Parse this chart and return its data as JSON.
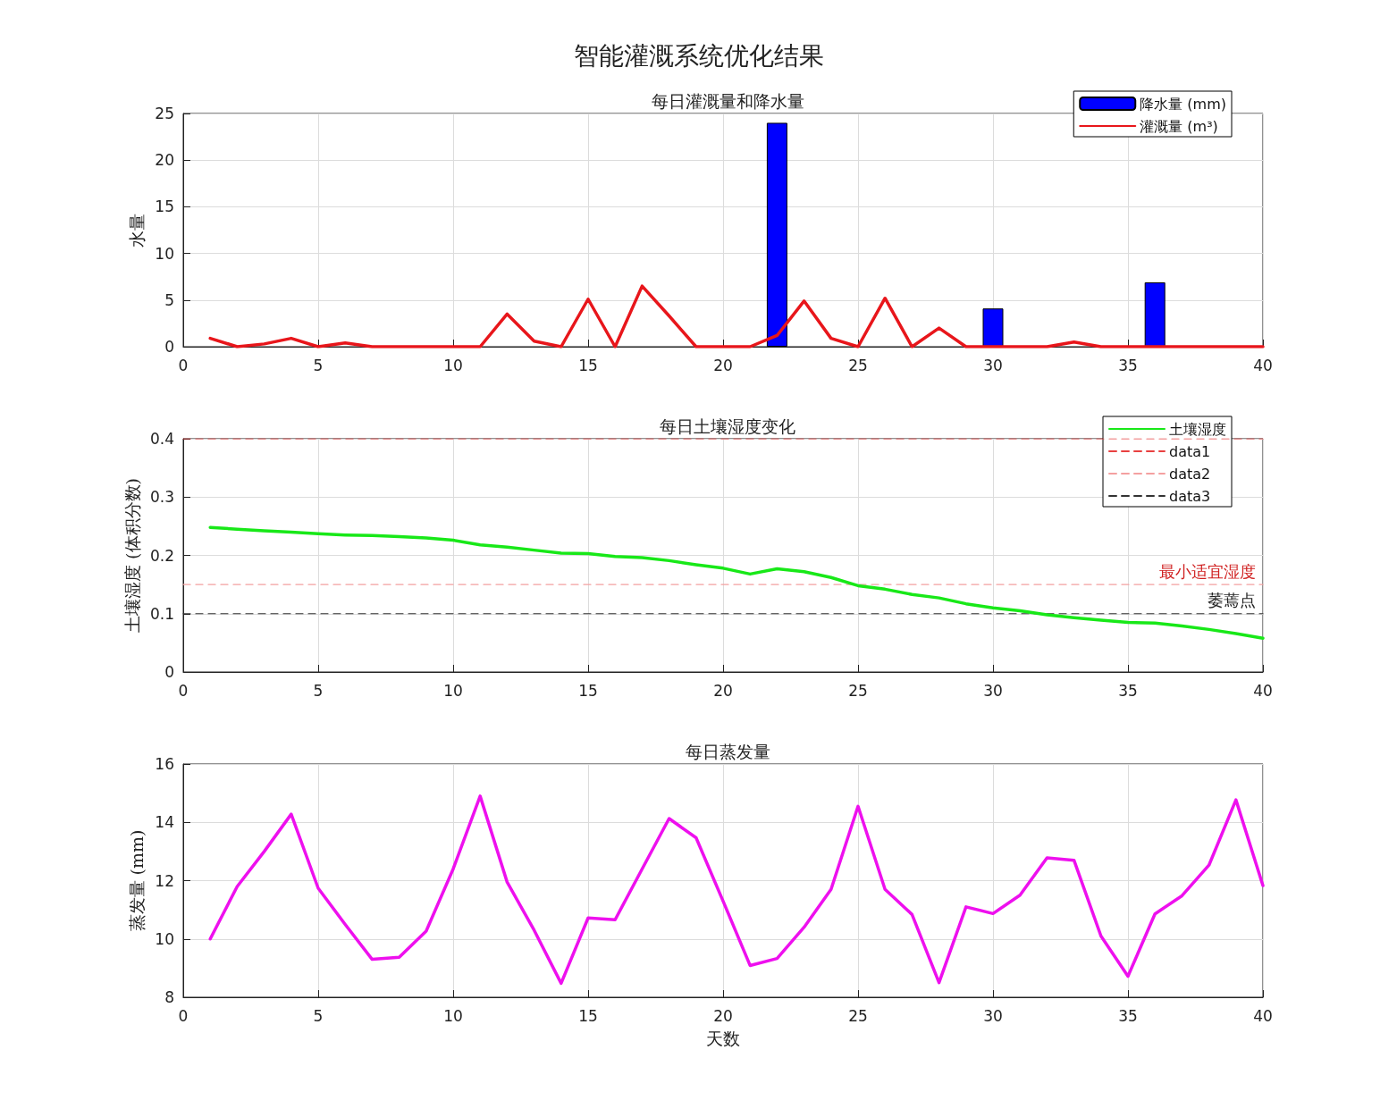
{
  "chart_data": [
    {
      "type": "line",
      "title": "智能灌溉系统优化结果",
      "subtitle": "每日灌溉量和降水量",
      "ylabel": "水量",
      "x": [
        1,
        2,
        3,
        4,
        5,
        6,
        7,
        8,
        9,
        10,
        11,
        12,
        13,
        14,
        15,
        16,
        17,
        18,
        19,
        20,
        21,
        22,
        23,
        24,
        25,
        26,
        27,
        28,
        29,
        30,
        31,
        32,
        33,
        34,
        35,
        36,
        37,
        38,
        39,
        40
      ],
      "series": [
        {
          "type": "bar",
          "name": "降水量 (mm)",
          "color": "#0000ff",
          "x": [
            22,
            30,
            36
          ],
          "values": [
            24.0,
            4.1,
            6.9
          ]
        },
        {
          "name": "灌溉量 (m³)",
          "color": "#e8161b",
          "values": [
            0.9,
            0,
            0.3,
            0.9,
            0,
            0.4,
            0,
            0,
            0,
            0,
            0,
            3.5,
            0.6,
            0,
            5.1,
            0,
            6.5,
            3.3,
            0,
            0,
            0,
            1.2,
            4.9,
            0.9,
            0,
            5.2,
            0,
            2.0,
            0,
            0,
            0,
            0,
            0.5,
            0,
            0,
            0,
            0,
            0,
            0,
            0
          ]
        }
      ],
      "xlim": [
        0,
        40
      ],
      "xticks": [
        0,
        5,
        10,
        15,
        20,
        25,
        30,
        35,
        40
      ],
      "ylim": [
        0,
        25
      ],
      "yticks": [
        0,
        5,
        10,
        15,
        20,
        25
      ],
      "grid": true,
      "legend": "top right"
    },
    {
      "type": "line",
      "title": "每日土壤湿度变化",
      "ylabel": "土壤湿度 (体积分数)",
      "x": [
        1,
        2,
        3,
        4,
        5,
        6,
        7,
        8,
        9,
        10,
        11,
        12,
        13,
        14,
        15,
        16,
        17,
        18,
        19,
        20,
        21,
        22,
        23,
        24,
        25,
        26,
        27,
        28,
        29,
        30,
        31,
        32,
        33,
        34,
        35,
        36,
        37,
        38,
        39,
        40
      ],
      "series": [
        {
          "name": "土壤湿度",
          "color": "#18e818",
          "values": [
            0.248,
            0.245,
            0.242,
            0.24,
            0.237,
            0.235,
            0.234,
            0.232,
            0.23,
            0.226,
            0.218,
            0.214,
            0.209,
            0.204,
            0.203,
            0.198,
            0.196,
            0.191,
            0.184,
            0.178,
            0.168,
            0.177,
            0.172,
            0.162,
            0.148,
            0.142,
            0.133,
            0.127,
            0.117,
            0.11,
            0.105,
            0.098,
            0.093,
            0.089,
            0.085,
            0.084,
            0.079,
            0.073,
            0.066,
            0.058
          ]
        },
        {
          "name": "data1",
          "color": "#e84040",
          "line_style": "dashed",
          "x": [
            0,
            40
          ],
          "values": [
            0.4,
            0.4
          ]
        },
        {
          "name": "data2",
          "color": "#f4a0a0",
          "line_style": "dashed",
          "x": [
            0,
            40
          ],
          "values": [
            0.15,
            0.15
          ]
        },
        {
          "name": "data3",
          "color": "#333333",
          "line_style": "dashed",
          "x": [
            0,
            40
          ],
          "values": [
            0.1,
            0.1
          ]
        }
      ],
      "annotations": [
        {
          "text": "最小适宜湿度",
          "x": 40,
          "y": 0.15
        },
        {
          "text": "萎蔫点",
          "x": 40,
          "y": 0.1
        }
      ],
      "xlim": [
        0,
        40
      ],
      "xticks": [
        0,
        5,
        10,
        15,
        20,
        25,
        30,
        35,
        40
      ],
      "ylim": [
        0,
        0.4
      ],
      "yticks": [
        0,
        0.1,
        0.2,
        0.3,
        0.4
      ],
      "grid": true,
      "legend": "top right"
    },
    {
      "type": "line",
      "title": "每日蒸发量",
      "xlabel": "天数",
      "ylabel": "蒸发量 (mm)",
      "x": [
        1,
        2,
        3,
        4,
        5,
        6,
        7,
        8,
        9,
        10,
        11,
        12,
        13,
        14,
        15,
        16,
        17,
        18,
        19,
        20,
        21,
        22,
        23,
        24,
        25,
        26,
        27,
        28,
        29,
        30,
        31,
        32,
        33,
        34,
        35,
        36,
        37,
        38,
        39,
        40
      ],
      "series": [
        {
          "color": "#ee10ee",
          "values": [
            10.0,
            11.8,
            13.0,
            14.28,
            11.74,
            10.5,
            9.3,
            9.37,
            10.27,
            12.4,
            14.9,
            11.95,
            10.3,
            8.48,
            10.72,
            10.66,
            12.4,
            14.13,
            13.47,
            11.3,
            9.09,
            9.33,
            10.4,
            11.7,
            14.55,
            11.7,
            10.84,
            8.5,
            11.1,
            10.87,
            11.5,
            12.78,
            12.7,
            10.1,
            8.72,
            10.86,
            11.48,
            12.53,
            14.77,
            11.83
          ]
        }
      ],
      "xlim": [
        0,
        40
      ],
      "xticks": [
        0,
        5,
        10,
        15,
        20,
        25,
        30,
        35,
        40
      ],
      "ylim": [
        8,
        16
      ],
      "yticks": [
        8,
        10,
        12,
        14,
        16
      ],
      "grid": true
    }
  ]
}
